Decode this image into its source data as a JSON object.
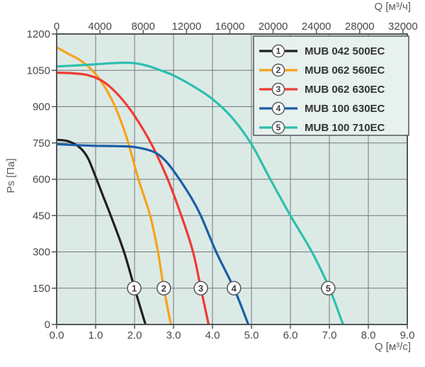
{
  "chart_data": {
    "type": "line",
    "title": "",
    "grid": true,
    "legend_position": "top-right",
    "x_axis_top": {
      "label": "Q [м³/ч]",
      "ticks": [
        0,
        4000,
        8000,
        12000,
        16000,
        20000,
        24000,
        28000,
        32000
      ],
      "units_per_bottom_unit": 3600
    },
    "x_axis_bottom": {
      "label": "Q [м³/с]",
      "range": [
        0,
        9
      ],
      "ticks": [
        0,
        1,
        2,
        3,
        4,
        5,
        6,
        7,
        8,
        9
      ],
      "tick_labels": [
        "0.0",
        "1.0",
        "2.0",
        "3.0",
        "4.0",
        "5.0",
        "6.0",
        "7.0",
        "8.0",
        "9.0"
      ],
      "gridlines": [
        1,
        2,
        3,
        4,
        5,
        6,
        7,
        8
      ]
    },
    "y_axis": {
      "label": "Ps [Па]",
      "range": [
        0,
        1200
      ],
      "ticks": [
        0,
        150,
        300,
        450,
        600,
        750,
        900,
        1050,
        1200
      ],
      "gridlines": [
        150,
        300,
        450,
        600,
        750,
        900,
        1050
      ]
    },
    "marker_ps_level": 150,
    "series": [
      {
        "index": "1",
        "name": "MUB 042 500EC",
        "color": "#231f20",
        "marker_q": 1.99,
        "points": [
          [
            0,
            763
          ],
          [
            0.3,
            757
          ],
          [
            0.6,
            730
          ],
          [
            0.8,
            688
          ],
          [
            1.0,
            610
          ],
          [
            1.2,
            527
          ],
          [
            1.4,
            445
          ],
          [
            1.73,
            300
          ],
          [
            2.0,
            150
          ],
          [
            2.28,
            0
          ]
        ]
      },
      {
        "index": "2",
        "name": "MUB 062 560EC",
        "color": "#f7a21b",
        "marker_q": 2.75,
        "points": [
          [
            0,
            1145
          ],
          [
            0.3,
            1118
          ],
          [
            0.6,
            1092
          ],
          [
            0.9,
            1052
          ],
          [
            1.2,
            990
          ],
          [
            1.5,
            900
          ],
          [
            1.8,
            770
          ],
          [
            2.1,
            600
          ],
          [
            2.4,
            450
          ],
          [
            2.6,
            300
          ],
          [
            2.75,
            150
          ],
          [
            2.93,
            0
          ]
        ]
      },
      {
        "index": "3",
        "name": "MUB 062 630EC",
        "color": "#ee3a34",
        "marker_q": 3.7,
        "points": [
          [
            0,
            1040
          ],
          [
            0.4,
            1038
          ],
          [
            0.8,
            1030
          ],
          [
            1.2,
            1003
          ],
          [
            1.6,
            945
          ],
          [
            2.0,
            862
          ],
          [
            2.45,
            740
          ],
          [
            2.85,
            600
          ],
          [
            3.2,
            450
          ],
          [
            3.5,
            300
          ],
          [
            3.7,
            150
          ],
          [
            3.9,
            0
          ]
        ]
      },
      {
        "index": "4",
        "name": "MUB 100 630EC",
        "color": "#1b5ea6",
        "marker_q": 4.55,
        "points": [
          [
            0,
            745
          ],
          [
            0.5,
            741
          ],
          [
            1.0,
            738
          ],
          [
            1.5,
            737
          ],
          [
            2.0,
            733
          ],
          [
            2.5,
            712
          ],
          [
            2.8,
            675
          ],
          [
            3.1,
            612
          ],
          [
            3.45,
            525
          ],
          [
            3.7,
            450
          ],
          [
            4.1,
            298
          ],
          [
            4.55,
            150
          ],
          [
            4.92,
            0
          ]
        ]
      },
      {
        "index": "5",
        "name": "MUB 100 710EC",
        "color": "#2cbfae",
        "marker_q": 6.97,
        "points": [
          [
            0,
            1066
          ],
          [
            0.5,
            1070
          ],
          [
            1.0,
            1075
          ],
          [
            1.5,
            1080
          ],
          [
            1.9,
            1081
          ],
          [
            2.3,
            1070
          ],
          [
            2.7,
            1048
          ],
          [
            3.0,
            1029
          ],
          [
            3.5,
            985
          ],
          [
            4.0,
            931
          ],
          [
            4.5,
            855
          ],
          [
            5.0,
            745
          ],
          [
            5.45,
            610
          ],
          [
            6.0,
            450
          ],
          [
            6.55,
            300
          ],
          [
            7.0,
            150
          ],
          [
            7.35,
            0
          ]
        ]
      }
    ]
  },
  "colors": {
    "plot_background": "#dceae6",
    "legend_background": "#e7f1ee",
    "gridline": "#75767a",
    "axis": "#54565a",
    "tick_text": "#47484b",
    "axis_title_text": "#5b5c5f",
    "marker_fill": "#ffffff",
    "marker_stroke": "#5a5b5e",
    "marker_number": "#3c3d3f",
    "legend_text": "#323336"
  }
}
